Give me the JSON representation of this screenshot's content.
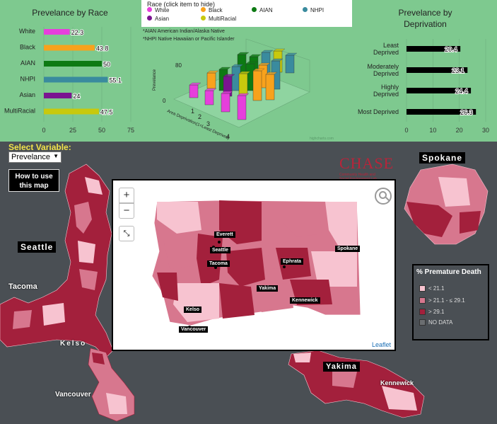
{
  "race_chart": {
    "title": "Prevelance by Race",
    "categories": [
      "White",
      "Black",
      "AIAN",
      "NHPI",
      "Asian",
      "MultiRacial"
    ],
    "values": [
      22.3,
      43.8,
      50,
      55.1,
      24,
      47.5
    ],
    "value_labels": [
      "22.3",
      "43.8",
      "50",
      "55.1",
      "24",
      "47.5"
    ],
    "colors": [
      "#e63fdc",
      "#f8a21c",
      "#0d7a13",
      "#3a8b9e",
      "#7a1590",
      "#c8c90d"
    ],
    "ticks": [
      "0",
      "25",
      "50",
      "75"
    ],
    "xlim": [
      0,
      75
    ]
  },
  "chart3d": {
    "title": "Race (click item to hide)",
    "legend": [
      {
        "label": "White",
        "color": "#e63fdc"
      },
      {
        "label": "Black",
        "color": "#f8a21c"
      },
      {
        "label": "AIAN",
        "color": "#0d7a13"
      },
      {
        "label": "NHPI",
        "color": "#3a8b9e"
      },
      {
        "label": "Asian",
        "color": "#7a1590"
      },
      {
        "label": "MultiRacial",
        "color": "#c8c90d"
      }
    ],
    "notes": [
      "*AIAN   American Indian/Alaska Native",
      "*NHPI   Native Hawaiian or Pacific Islander"
    ],
    "y_ticks": [
      "80",
      "0"
    ],
    "y_label": "Prevelance",
    "x_ticks": [
      "1",
      "2",
      "3",
      "4"
    ],
    "x_label": "Area Deprivation(1=Least Deprived)",
    "credit": "highcharts.com"
  },
  "dep_chart": {
    "title_line1": "Prevelance by",
    "title_line2": "Deprivation",
    "categories": [
      [
        "Least",
        "Deprived"
      ],
      [
        "Moderately",
        "Deprived"
      ],
      [
        "Highly",
        "Deprived"
      ],
      [
        "Most Deprived"
      ]
    ],
    "values": [
      20.4,
      23.1,
      24.4,
      26.3
    ],
    "value_labels": [
      "20.4",
      "23.1",
      "24.4",
      "26.3"
    ],
    "ticks": [
      "0",
      "10",
      "20",
      "30"
    ],
    "xlim": [
      0,
      30
    ],
    "color": "#000000"
  },
  "controls": {
    "select_label": "Select Variable:",
    "select_value": "Prevelance",
    "howto_line1": "How to use",
    "howto_line2": "this map",
    "zoom_in": "+",
    "zoom_out": "−",
    "fullscreen": "⤡",
    "attribution": "Leaflet"
  },
  "logo": {
    "word": "CHASE",
    "sub1": "Community Health and",
    "sub2": "Social Environment Lab"
  },
  "map_cities": [
    "Everett",
    "Seattle",
    "Tacoma",
    "Ephrata",
    "Spokane",
    "Yakima",
    "Kennewick",
    "Kelso",
    "Vancouver"
  ],
  "inset_labels": {
    "seattle": "Seattle",
    "tacoma": "Tacoma",
    "kelso": "Kelso",
    "vancouver": "Vancouver",
    "spokane": "Spokane",
    "yakima": "Yakima",
    "kennewick": "Kennewick"
  },
  "legend": {
    "title": "% Premature Death",
    "items": [
      {
        "label": "< 21.1",
        "color": "#f7c3d0"
      },
      {
        "label": "> 21.1 - ≤ 29.1",
        "color": "#d7778e"
      },
      {
        "label": "> 29.1",
        "color": "#a3203c"
      },
      {
        "label": "NO DATA",
        "color": "#6b6e71"
      }
    ]
  }
}
